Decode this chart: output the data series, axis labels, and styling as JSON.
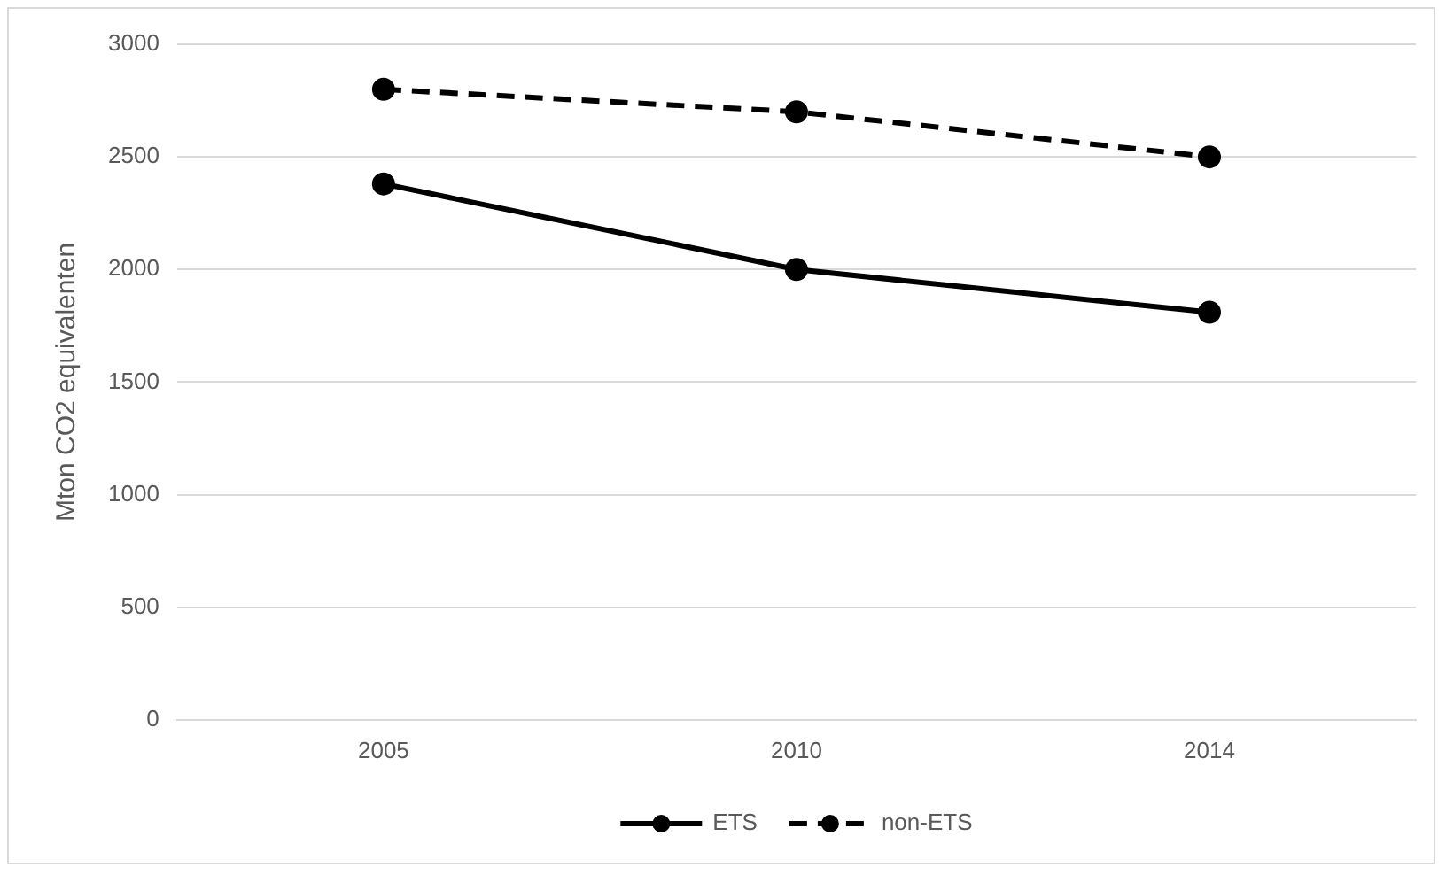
{
  "chart_data": {
    "type": "line",
    "ylabel": "Mton CO2 equivalenten",
    "categories": [
      "2005",
      "2010",
      "2014"
    ],
    "series": [
      {
        "name": "ETS",
        "color": "#000000",
        "values": [
          2380,
          2000,
          1810
        ],
        "line_style": "solid"
      },
      {
        "name": "non-ETS",
        "color": "#000000",
        "values": [
          2800,
          2700,
          2500
        ],
        "line_style": "dashed"
      }
    ],
    "ylim": [
      0,
      3000
    ],
    "yticks": [
      0,
      500,
      1000,
      1500,
      2000,
      2500,
      3000
    ],
    "grid": "y",
    "legend": "bottom",
    "marker": "circle"
  }
}
